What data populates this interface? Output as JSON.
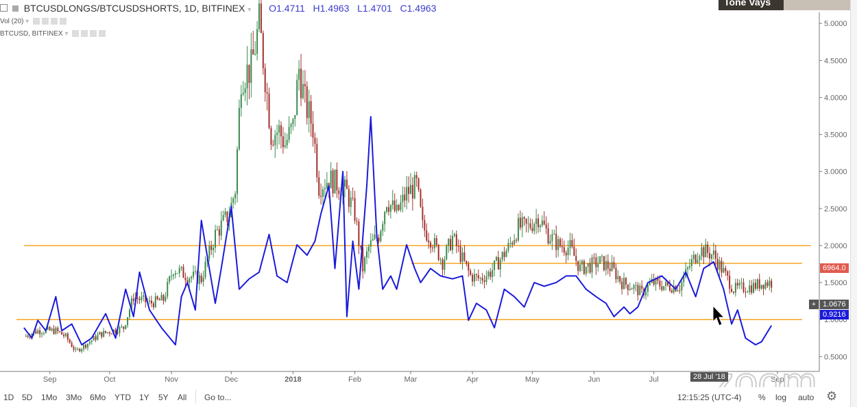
{
  "header": {
    "symbol_title": "BTCUSDLONGS/BTCUSDSHORTS, 1D, BITFINEX",
    "ohlc": {
      "open_label": "O",
      "open": "1.4711",
      "high_label": "H",
      "high": "1.4963",
      "low_label": "L",
      "low": "1.4701",
      "close_label": "C",
      "close": "1.4963"
    },
    "studies": [
      {
        "label": "Vol (20)"
      },
      {
        "label": "BTCUSD, BITFINEX"
      }
    ]
  },
  "webcam": {
    "name": "Tone Vays"
  },
  "price_tags": {
    "btcusd_price": "6964.0",
    "crosshair_value": "1.0676",
    "overlay_value": "0.9216",
    "crosshair_date": "28 Jul '18"
  },
  "toolbar": {
    "ranges": [
      "1D",
      "5D",
      "1Mo",
      "3Mo",
      "6Mo",
      "YTD",
      "1Y",
      "5Y",
      "All"
    ],
    "goto": "Go to...",
    "clock": "12:15:25 (UTC-4)",
    "percent": "%",
    "log": "log",
    "auto": "auto"
  },
  "colors": {
    "up": "#3c8a4e",
    "down": "#a0302a",
    "overlay": "#1a1adb",
    "hline": "#f5a623",
    "overlay_tag": "#1a1adb",
    "price_tag": "#e05a4f"
  },
  "chart_data": {
    "type": "candlestick+line",
    "interval": "1D",
    "y_ticks": [
      "5.0000",
      "4.5000",
      "4.0000",
      "3.5000",
      "3.0000",
      "2.5000",
      "2.0000",
      "1.5000",
      "1.0000",
      "0.5000"
    ],
    "ylim": [
      0.3,
      5.15
    ],
    "x_ticks": [
      {
        "label": "Sep",
        "date": "2017-09-01"
      },
      {
        "label": "Oct",
        "date": "2017-10-01"
      },
      {
        "label": "Nov",
        "date": "2017-11-01"
      },
      {
        "label": "Dec",
        "date": "2017-12-01"
      },
      {
        "label": "2018",
        "date": "2018-01-01",
        "bold": true
      },
      {
        "label": "Feb",
        "date": "2018-02-01"
      },
      {
        "label": "Mar",
        "date": "2018-03-01"
      },
      {
        "label": "Apr",
        "date": "2018-04-01"
      },
      {
        "label": "May",
        "date": "2018-05-01"
      },
      {
        "label": "Jun",
        "date": "2018-06-01"
      },
      {
        "label": "Jul",
        "date": "2018-07-01"
      },
      {
        "label": "Sep",
        "date": "2018-09-01"
      }
    ],
    "xlim": [
      "2017-08-07",
      "2018-09-22"
    ],
    "horizontal_lines": [
      2.0,
      1.76,
      1.0
    ],
    "series": [
      {
        "name": "BTCUSDLONGS/BTCUSDSHORTS",
        "style": "candles",
        "points": [
          [
            "2017-08-19",
            0.77
          ],
          [
            "2017-08-26",
            0.85
          ],
          [
            "2017-09-04",
            0.85
          ],
          [
            "2017-09-09",
            0.77
          ],
          [
            "2017-09-14",
            0.57
          ],
          [
            "2017-09-19",
            0.66
          ],
          [
            "2017-09-26",
            0.8
          ],
          [
            "2017-10-08",
            0.89
          ],
          [
            "2017-10-13",
            1.31
          ],
          [
            "2017-10-21",
            1.22
          ],
          [
            "2017-10-28",
            1.27
          ],
          [
            "2017-11-02",
            1.69
          ],
          [
            "2017-11-09",
            1.59
          ],
          [
            "2017-11-16",
            1.55
          ],
          [
            "2017-11-23",
            2.15
          ],
          [
            "2017-11-30",
            2.43
          ],
          [
            "2017-12-03",
            2.76
          ],
          [
            "2017-12-06",
            4.3
          ],
          [
            "2017-12-11",
            4.39
          ],
          [
            "2017-12-15",
            5.0
          ],
          [
            "2017-12-18",
            4.3
          ],
          [
            "2017-12-21",
            3.51
          ],
          [
            "2017-12-25",
            3.55
          ],
          [
            "2017-12-28",
            3.37
          ],
          [
            "2018-01-01",
            3.6
          ],
          [
            "2018-01-04",
            4.39
          ],
          [
            "2018-01-07",
            3.93
          ],
          [
            "2018-01-11",
            3.6
          ],
          [
            "2018-01-14",
            2.81
          ],
          [
            "2018-01-19",
            2.9
          ],
          [
            "2018-01-25",
            2.81
          ],
          [
            "2018-01-28",
            2.71
          ],
          [
            "2018-02-01",
            2.43
          ],
          [
            "2018-02-05",
            1.69
          ],
          [
            "2018-02-08",
            1.97
          ],
          [
            "2018-02-13",
            2.15
          ],
          [
            "2018-02-17",
            2.62
          ],
          [
            "2018-02-22",
            2.43
          ],
          [
            "2018-02-27",
            2.71
          ],
          [
            "2018-03-04",
            2.81
          ],
          [
            "2018-03-07",
            2.25
          ],
          [
            "2018-03-12",
            2.06
          ],
          [
            "2018-03-17",
            1.78
          ],
          [
            "2018-03-22",
            2.11
          ],
          [
            "2018-03-26",
            1.87
          ],
          [
            "2018-03-31",
            1.59
          ],
          [
            "2018-04-05",
            1.55
          ],
          [
            "2018-04-10",
            1.64
          ],
          [
            "2018-04-14",
            1.78
          ],
          [
            "2018-04-19",
            1.97
          ],
          [
            "2018-04-24",
            2.25
          ],
          [
            "2018-04-29",
            2.25
          ],
          [
            "2018-05-04",
            2.39
          ],
          [
            "2018-05-09",
            2.15
          ],
          [
            "2018-05-14",
            2.01
          ],
          [
            "2018-05-20",
            1.97
          ],
          [
            "2018-05-25",
            1.69
          ],
          [
            "2018-05-30",
            1.73
          ],
          [
            "2018-06-04",
            1.78
          ],
          [
            "2018-06-10",
            1.69
          ],
          [
            "2018-06-15",
            1.5
          ],
          [
            "2018-06-20",
            1.45
          ],
          [
            "2018-06-25",
            1.36
          ],
          [
            "2018-06-30",
            1.5
          ],
          [
            "2018-07-07",
            1.45
          ],
          [
            "2018-07-14",
            1.45
          ],
          [
            "2018-07-19",
            1.73
          ],
          [
            "2018-07-24",
            1.95
          ],
          [
            "2018-07-31",
            1.87
          ],
          [
            "2018-08-05",
            1.64
          ],
          [
            "2018-08-10",
            1.41
          ],
          [
            "2018-08-15",
            1.43
          ],
          [
            "2018-08-20",
            1.45
          ],
          [
            "2018-08-25",
            1.5
          ],
          [
            "2018-08-29",
            1.5
          ]
        ]
      },
      {
        "name": "BTCUSD, BITFINEX",
        "style": "line",
        "points": [
          [
            "2017-08-19",
            0.89
          ],
          [
            "2017-08-23",
            0.75
          ],
          [
            "2017-08-26",
            0.99
          ],
          [
            "2017-08-30",
            0.85
          ],
          [
            "2017-09-04",
            1.31
          ],
          [
            "2017-09-07",
            0.85
          ],
          [
            "2017-09-12",
            0.94
          ],
          [
            "2017-09-17",
            0.66
          ],
          [
            "2017-09-22",
            0.75
          ],
          [
            "2017-09-29",
            1.08
          ],
          [
            "2017-10-04",
            0.75
          ],
          [
            "2017-10-09",
            1.41
          ],
          [
            "2017-10-13",
            1.04
          ],
          [
            "2017-10-16",
            1.64
          ],
          [
            "2017-10-21",
            1.13
          ],
          [
            "2017-10-27",
            0.89
          ],
          [
            "2017-11-03",
            0.66
          ],
          [
            "2017-11-06",
            1.31
          ],
          [
            "2017-11-09",
            1.5
          ],
          [
            "2017-11-13",
            1.13
          ],
          [
            "2017-11-16",
            2.34
          ],
          [
            "2017-11-20",
            1.69
          ],
          [
            "2017-11-23",
            1.22
          ],
          [
            "2017-11-26",
            1.69
          ],
          [
            "2017-12-01",
            2.53
          ],
          [
            "2017-12-05",
            1.41
          ],
          [
            "2017-12-10",
            1.55
          ],
          [
            "2017-12-15",
            1.64
          ],
          [
            "2017-12-20",
            2.15
          ],
          [
            "2017-12-24",
            1.59
          ],
          [
            "2017-12-29",
            1.5
          ],
          [
            "2018-01-03",
            2.01
          ],
          [
            "2018-01-08",
            1.87
          ],
          [
            "2018-01-12",
            2.06
          ],
          [
            "2018-01-15",
            2.43
          ],
          [
            "2018-01-19",
            2.81
          ],
          [
            "2018-01-22",
            1.69
          ],
          [
            "2018-01-26",
            3.0
          ],
          [
            "2018-01-28",
            1.04
          ],
          [
            "2018-01-31",
            2.06
          ],
          [
            "2018-02-03",
            1.41
          ],
          [
            "2018-02-07",
            2.81
          ],
          [
            "2018-02-09",
            3.74
          ],
          [
            "2018-02-12",
            2.15
          ],
          [
            "2018-02-15",
            1.41
          ],
          [
            "2018-02-19",
            1.59
          ],
          [
            "2018-02-22",
            1.41
          ],
          [
            "2018-02-27",
            2.01
          ],
          [
            "2018-03-03",
            1.69
          ],
          [
            "2018-03-06",
            1.5
          ],
          [
            "2018-03-11",
            1.69
          ],
          [
            "2018-03-16",
            1.59
          ],
          [
            "2018-03-22",
            1.55
          ],
          [
            "2018-03-27",
            1.59
          ],
          [
            "2018-03-30",
            0.99
          ],
          [
            "2018-04-03",
            1.22
          ],
          [
            "2018-04-08",
            1.13
          ],
          [
            "2018-04-12",
            0.89
          ],
          [
            "2018-04-17",
            1.41
          ],
          [
            "2018-04-22",
            1.31
          ],
          [
            "2018-04-27",
            1.17
          ],
          [
            "2018-05-02",
            1.5
          ],
          [
            "2018-05-07",
            1.45
          ],
          [
            "2018-05-13",
            1.5
          ],
          [
            "2018-05-18",
            1.59
          ],
          [
            "2018-05-23",
            1.59
          ],
          [
            "2018-05-28",
            1.41
          ],
          [
            "2018-06-02",
            1.31
          ],
          [
            "2018-06-07",
            1.22
          ],
          [
            "2018-06-11",
            1.04
          ],
          [
            "2018-06-16",
            1.17
          ],
          [
            "2018-06-19",
            1.08
          ],
          [
            "2018-06-23",
            1.17
          ],
          [
            "2018-06-28",
            1.5
          ],
          [
            "2018-07-05",
            1.59
          ],
          [
            "2018-07-12",
            1.41
          ],
          [
            "2018-07-17",
            1.64
          ],
          [
            "2018-07-22",
            1.31
          ],
          [
            "2018-07-26",
            1.69
          ],
          [
            "2018-07-31",
            1.78
          ],
          [
            "2018-08-05",
            1.41
          ],
          [
            "2018-08-09",
            0.94
          ],
          [
            "2018-08-12",
            1.13
          ],
          [
            "2018-08-16",
            0.75
          ],
          [
            "2018-08-21",
            0.66
          ],
          [
            "2018-08-24",
            0.7
          ],
          [
            "2018-08-29",
            0.92
          ]
        ]
      }
    ]
  }
}
